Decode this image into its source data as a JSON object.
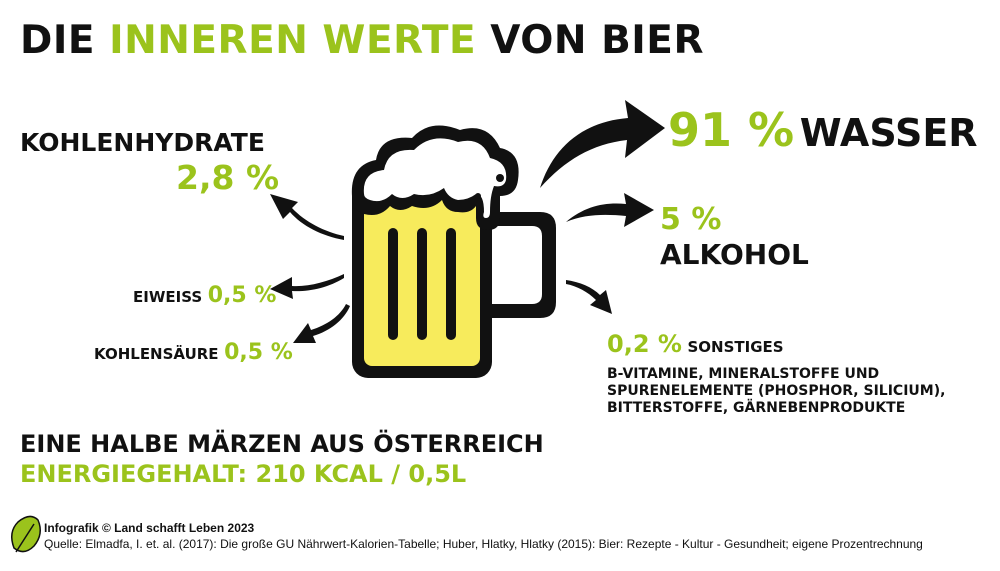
{
  "title": {
    "part1": "DIE ",
    "part2": "INNEREN WERTE",
    "part3": " VON BIER"
  },
  "water": {
    "pct": "91 %",
    "label": "WASSER"
  },
  "alcohol": {
    "pct": "5 %",
    "label": "ALKOHOL"
  },
  "carbs": {
    "label": "KOHLENHYDRATE",
    "pct": "2,8 %"
  },
  "protein": {
    "label": "EIWEISS",
    "pct": "0,5 %"
  },
  "co2": {
    "label": "KOHLENSÄURE",
    "pct": "0,5 %"
  },
  "other": {
    "pct": "0,2 %",
    "label": "SONSTIGES",
    "line1": "B-VITAMINE, MINERALSTOFFE UND",
    "line2": "SPURENELEMENTE (PHOSPHOR, SILICIUM),",
    "line3": "BITTERSTOFFE, GÄRNEBENPRODUKTE"
  },
  "summary": {
    "line1": "EINE HALBE MÄRZEN AUS ÖSTERREICH",
    "line2": "ENERGIEGEHALT: 210 KCAL / 0,5L"
  },
  "footer": {
    "credit": "Infografik © Land schafft Leben 2023",
    "source": "Quelle: Elmadfa, I. et. al. (2017): Die große GU Nährwert-Kalorien-Tabelle; Huber, Hlatky, Hlatky (2015): Bier: Rezepte - Kultur - Gesundheit; eigene Prozentrechnung"
  },
  "colors": {
    "accent": "#9bc31c",
    "beer": "#f7eb5c",
    "ink": "#111111"
  },
  "icons": {
    "beer_mug": "beer-mug-icon",
    "logo": "leaf-logo-icon"
  }
}
